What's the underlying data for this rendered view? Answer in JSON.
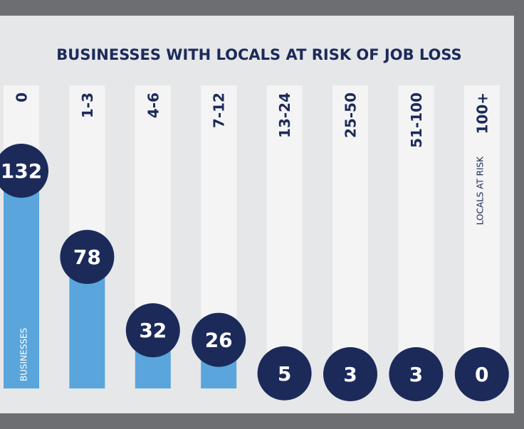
{
  "chart_data": {
    "type": "bar",
    "title": "BUSINESSES WITH LOCALS AT RISK OF JOB LOSS",
    "x_label": "LOCALS AT RISK",
    "y_label": "BUSINESSES",
    "categories": [
      "0",
      "1-3",
      "4-6",
      "7-12",
      "13-24",
      "25-50",
      "51-100",
      "100+"
    ],
    "values": [
      132,
      78,
      32,
      26,
      5,
      3,
      3,
      0
    ],
    "color": "#5aa5dc",
    "badge_color": "#1c2a5a"
  }
}
